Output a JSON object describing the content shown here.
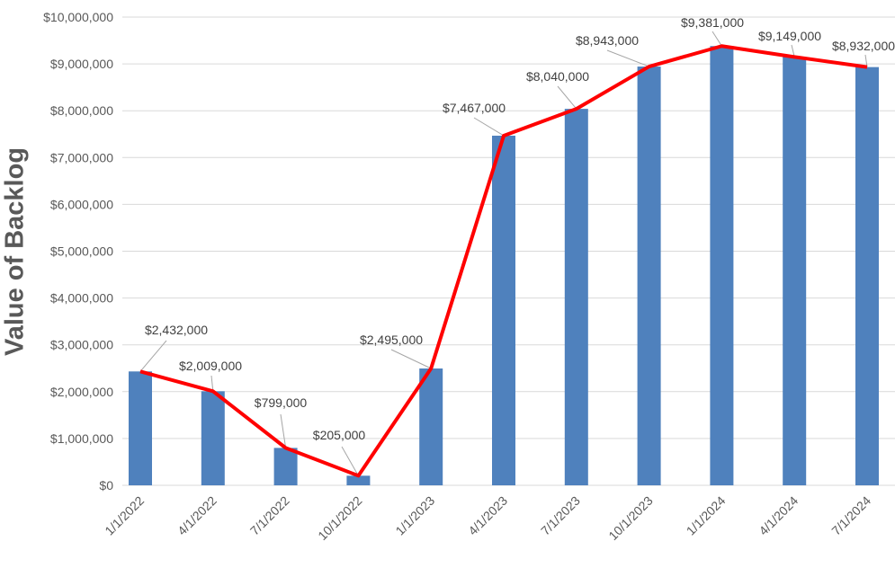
{
  "chart_data": {
    "type": "bar+line",
    "title": "",
    "xlabel": "",
    "ylabel": "Value of Backlog",
    "ylim": [
      0,
      10000000
    ],
    "yticks": [
      "$0",
      "$1,000,000",
      "$2,000,000",
      "$3,000,000",
      "$4,000,000",
      "$5,000,000",
      "$6,000,000",
      "$7,000,000",
      "$8,000,000",
      "$9,000,000",
      "$10,000,000"
    ],
    "ytick_values": [
      0,
      1000000,
      2000000,
      3000000,
      4000000,
      5000000,
      6000000,
      7000000,
      8000000,
      9000000,
      10000000
    ],
    "categories": [
      "1/1/2022",
      "4/1/2022",
      "7/1/2022",
      "10/1/2022",
      "1/1/2023",
      "4/1/2023",
      "7/1/2023",
      "10/1/2023",
      "1/1/2024",
      "4/1/2024",
      "7/1/2024"
    ],
    "values": [
      2432000,
      2009000,
      799000,
      205000,
      2495000,
      7467000,
      8040000,
      8943000,
      9381000,
      9149000,
      8932000
    ],
    "data_labels": [
      "$2,432,000",
      "$2,009,000",
      "$799,000",
      "$205,000",
      "$2,495,000",
      "$7,467,000",
      "$8,040,000",
      "$8,943,000",
      "$9,381,000",
      "$9,149,000",
      "$8,932,000"
    ],
    "grid": true,
    "colors": {
      "bar": "#4f81bd",
      "line": "#ff0000",
      "grid": "#d9d9d9",
      "text": "#595959"
    }
  }
}
